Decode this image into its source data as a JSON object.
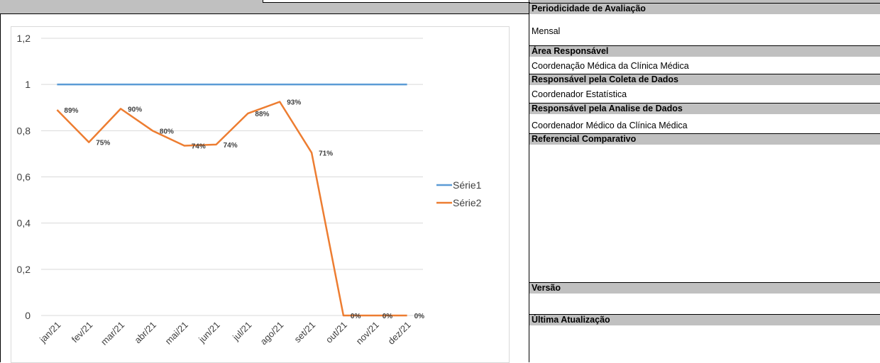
{
  "panel": {
    "periodicidade_header": "Periodicidade de Avaliação",
    "periodicidade_value": "Mensal",
    "area_header": "Área Responsável",
    "area_value": "Coordenação Médica da Clínica Médica",
    "coleta_header": "Responsável pela Coleta de Dados",
    "coleta_value": "Coordenador Estatística",
    "analise_header": "Responsável pela Analise de Dados",
    "analise_value": "Coordenador Médico da Clínica Médica",
    "referencial_header": "Referencial Comparativo",
    "versao_header": "Versão",
    "atualizacao_header": "Última Atualização"
  },
  "colors": {
    "serie1": "#5b9bd5",
    "serie2": "#ed7d31",
    "header_bg": "#c0c0c0",
    "gridline": "#d9d9d9"
  },
  "chart_data": {
    "type": "line",
    "categories": [
      "jan/21",
      "fev/21",
      "mar/21",
      "abr/21",
      "mai/21",
      "jun/21",
      "jul/21",
      "ago/21",
      "set/21",
      "out/21",
      "nov/21",
      "dez/21"
    ],
    "series": [
      {
        "name": "Série1",
        "values": [
          1,
          1,
          1,
          1,
          1,
          1,
          1,
          1,
          1,
          1,
          1,
          1
        ]
      },
      {
        "name": "Série2",
        "values": [
          0.89,
          0.75,
          0.895,
          0.8,
          0.735,
          0.74,
          0.875,
          0.925,
          0.705,
          0,
          0,
          0
        ],
        "labels": [
          "89%",
          "75%",
          "90%",
          "80%",
          "74%",
          "74%",
          "88%",
          "93%",
          "71%",
          "0%",
          "0%",
          "0%"
        ]
      }
    ],
    "ylim": [
      0,
      1.2
    ],
    "yticks": [
      "0",
      "0,2",
      "0,4",
      "0,6",
      "0,8",
      "1",
      "1,2"
    ],
    "grid": true,
    "legend": "right"
  }
}
